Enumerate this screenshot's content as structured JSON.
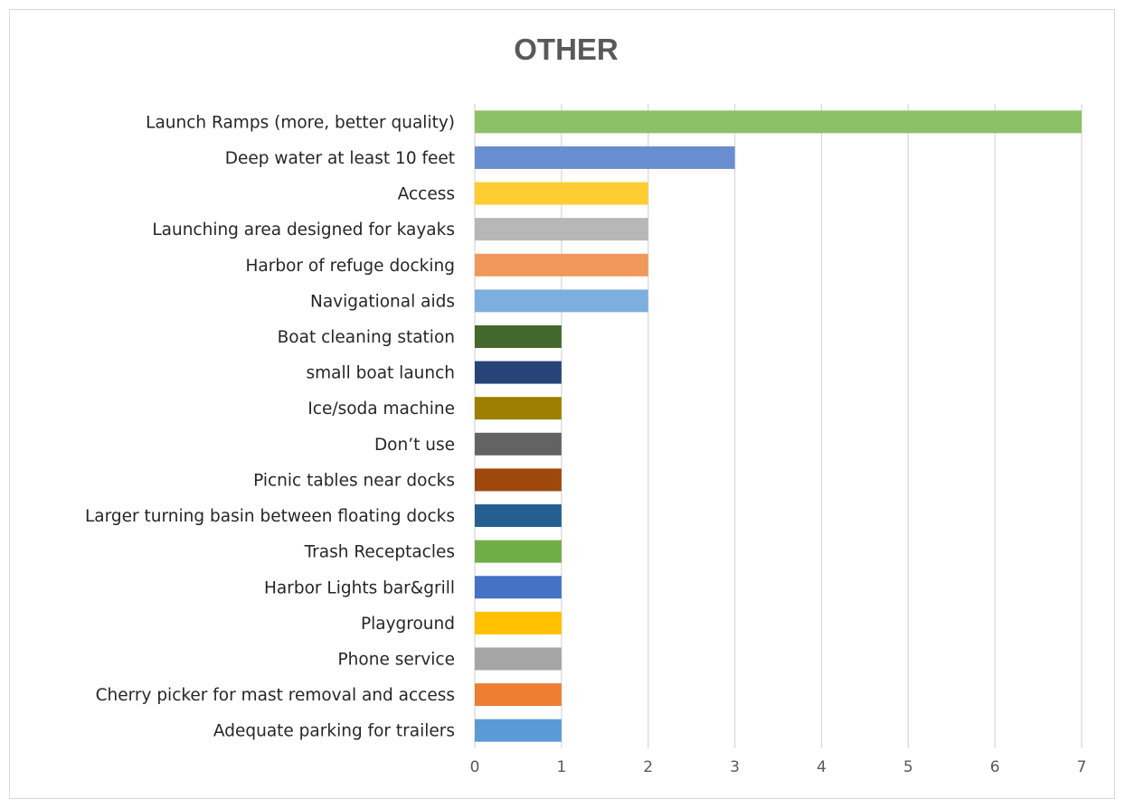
{
  "chart_data": {
    "type": "bar",
    "orientation": "horizontal",
    "title": "OTHER",
    "xlabel": "",
    "ylabel": "",
    "xlim": [
      0,
      7
    ],
    "xticks": [
      "0",
      "1",
      "2",
      "3",
      "4",
      "5",
      "6",
      "7"
    ],
    "grid": true,
    "legend": "none",
    "categories": [
      "Launch Ramps (more, better quality)",
      "Deep water at least 10 feet",
      "Access",
      "Launching area designed for kayaks",
      "Harbor of refuge docking",
      "Navigational aids",
      "Boat cleaning station",
      "small boat launch",
      "Ice/soda machine",
      "Don’t use",
      "Picnic tables near docks",
      "Larger turning basin between floating docks",
      "Trash Receptacles",
      "Harbor Lights bar&grill",
      "Playground",
      "Phone service",
      "Cherry picker for mast removal and access",
      "Adequate parking for trailers"
    ],
    "values": [
      7,
      3,
      2,
      2,
      2,
      2,
      1,
      1,
      1,
      1,
      1,
      1,
      1,
      1,
      1,
      1,
      1,
      1
    ],
    "colors": [
      "#8cc168",
      "#698ed0",
      "#ffcd33",
      "#b7b7b7",
      "#f1975a",
      "#7cafdd",
      "#43682b",
      "#264478",
      "#9e7f00",
      "#636363",
      "#9e480e",
      "#255e91",
      "#70ad47",
      "#4472c4",
      "#ffc000",
      "#a5a5a5",
      "#ed7d31",
      "#5b9bd5"
    ]
  }
}
